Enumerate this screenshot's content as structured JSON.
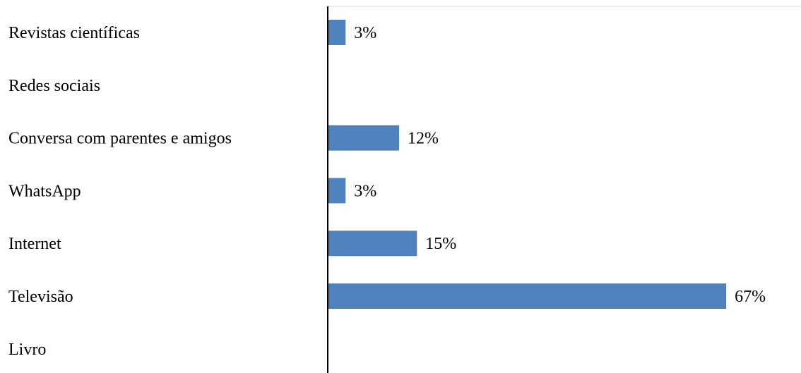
{
  "chart_data": {
    "type": "bar",
    "orientation": "horizontal",
    "categories": [
      "Revistas científicas",
      "Redes sociais",
      "Conversa com parentes e amigos",
      "WhatsApp",
      "Internet",
      "Televisão",
      "Livro"
    ],
    "values": [
      3,
      0,
      12,
      3,
      15,
      67,
      0
    ],
    "data_labels": [
      "3%",
      "",
      "12%",
      "3%",
      "15%",
      "67%",
      ""
    ],
    "unit": "%",
    "xlim": [
      0,
      67
    ],
    "grid": false,
    "legend": "none",
    "bar_color": "#4F81BD",
    "axis_color": "#000000",
    "title": "",
    "xlabel": "",
    "ylabel": ""
  }
}
